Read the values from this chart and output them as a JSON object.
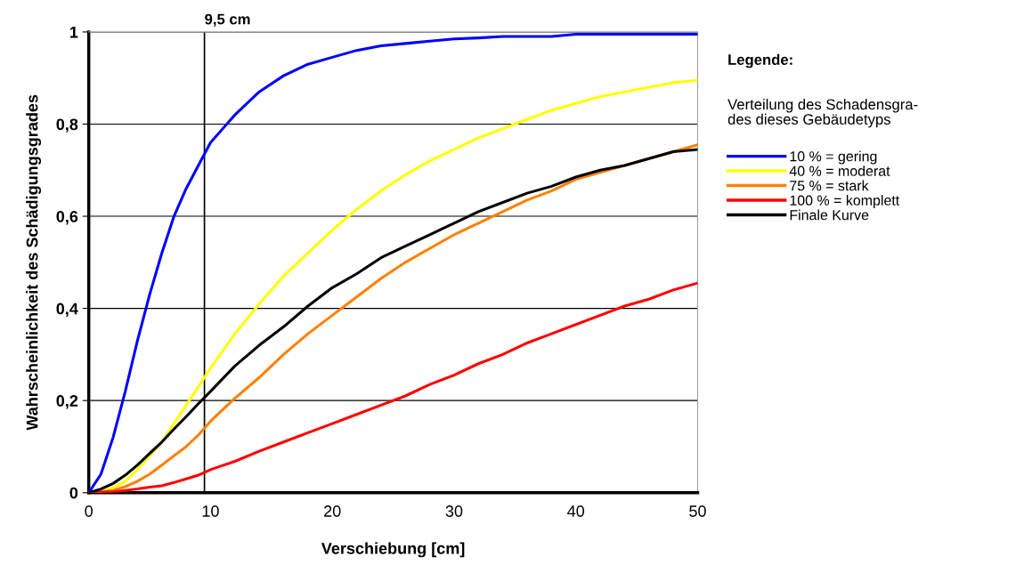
{
  "chart_data": {
    "type": "line",
    "xlabel": "Verschiebung [cm]",
    "ylabel": "Wahrscheinlichkeit des Schädigungsgrades",
    "legend_title": "Legende:",
    "annotations": [
      "Verteilung des Schadensgra-\ndes dieses Gebäudetyps"
    ],
    "x": [
      0,
      1,
      2,
      3,
      4,
      5,
      6,
      7,
      8,
      9,
      10,
      12,
      14,
      16,
      18,
      20,
      22,
      24,
      26,
      28,
      30,
      32,
      34,
      36,
      38,
      40,
      42,
      44,
      46,
      48,
      50
    ],
    "series": [
      {
        "name": "10 % = gering",
        "color": "#0000ff",
        "values": [
          0,
          0.04,
          0.12,
          0.22,
          0.33,
          0.43,
          0.52,
          0.6,
          0.66,
          0.71,
          0.76,
          0.82,
          0.87,
          0.905,
          0.93,
          0.945,
          0.96,
          0.97,
          0.975,
          0.98,
          0.985,
          0.987,
          0.99,
          0.99,
          0.99,
          0.995,
          0.995,
          0.995,
          0.995,
          0.995,
          0.995
        ]
      },
      {
        "name": "40 % = moderat",
        "color": "#ffff00",
        "values": [
          0,
          0.003,
          0.01,
          0.025,
          0.05,
          0.08,
          0.11,
          0.15,
          0.19,
          0.23,
          0.27,
          0.345,
          0.41,
          0.47,
          0.52,
          0.57,
          0.615,
          0.655,
          0.69,
          0.72,
          0.745,
          0.77,
          0.79,
          0.81,
          0.83,
          0.845,
          0.86,
          0.87,
          0.88,
          0.89,
          0.895
        ]
      },
      {
        "name": "75 % = stark",
        "color": "#ff8000",
        "values": [
          0,
          0.002,
          0.005,
          0.013,
          0.025,
          0.04,
          0.06,
          0.08,
          0.1,
          0.125,
          0.155,
          0.205,
          0.25,
          0.3,
          0.345,
          0.385,
          0.425,
          0.465,
          0.5,
          0.53,
          0.56,
          0.585,
          0.61,
          0.635,
          0.655,
          0.68,
          0.695,
          0.71,
          0.725,
          0.74,
          0.755
        ]
      },
      {
        "name": "100 % = komplett",
        "color": "#ff0000",
        "values": [
          0,
          0.001,
          0.002,
          0.005,
          0.008,
          0.012,
          0.015,
          0.022,
          0.03,
          0.038,
          0.05,
          0.068,
          0.09,
          0.11,
          0.13,
          0.15,
          0.17,
          0.19,
          0.21,
          0.235,
          0.255,
          0.28,
          0.3,
          0.325,
          0.345,
          0.365,
          0.385,
          0.405,
          0.42,
          0.44,
          0.455
        ]
      },
      {
        "name": "Finale Kurve",
        "color": "#000000",
        "values": [
          0,
          0.008,
          0.02,
          0.038,
          0.06,
          0.085,
          0.11,
          0.138,
          0.165,
          0.193,
          0.22,
          0.275,
          0.32,
          0.36,
          0.405,
          0.445,
          0.475,
          0.51,
          0.535,
          0.56,
          0.585,
          0.61,
          0.63,
          0.65,
          0.665,
          0.685,
          0.7,
          0.71,
          0.725,
          0.74,
          0.745
        ]
      }
    ],
    "xlim": [
      0,
      50
    ],
    "xticks": [
      0,
      10,
      20,
      30,
      40,
      50
    ],
    "ylim": [
      0,
      1
    ],
    "yticks": [
      {
        "value": 0,
        "label": "0"
      },
      {
        "value": 0.2,
        "label": "0,2"
      },
      {
        "value": 0.4,
        "label": "0,4"
      },
      {
        "value": 0.6,
        "label": "0,6"
      },
      {
        "value": 0.8,
        "label": "0,8"
      },
      {
        "value": 1,
        "label": "1"
      }
    ],
    "ref_lines": [
      {
        "axis": "x",
        "value": 9.5,
        "label": "9,5 cm",
        "color": "#000000"
      }
    ],
    "grid": "y",
    "legend": "right",
    "marker": "none",
    "line_style": "solid"
  }
}
